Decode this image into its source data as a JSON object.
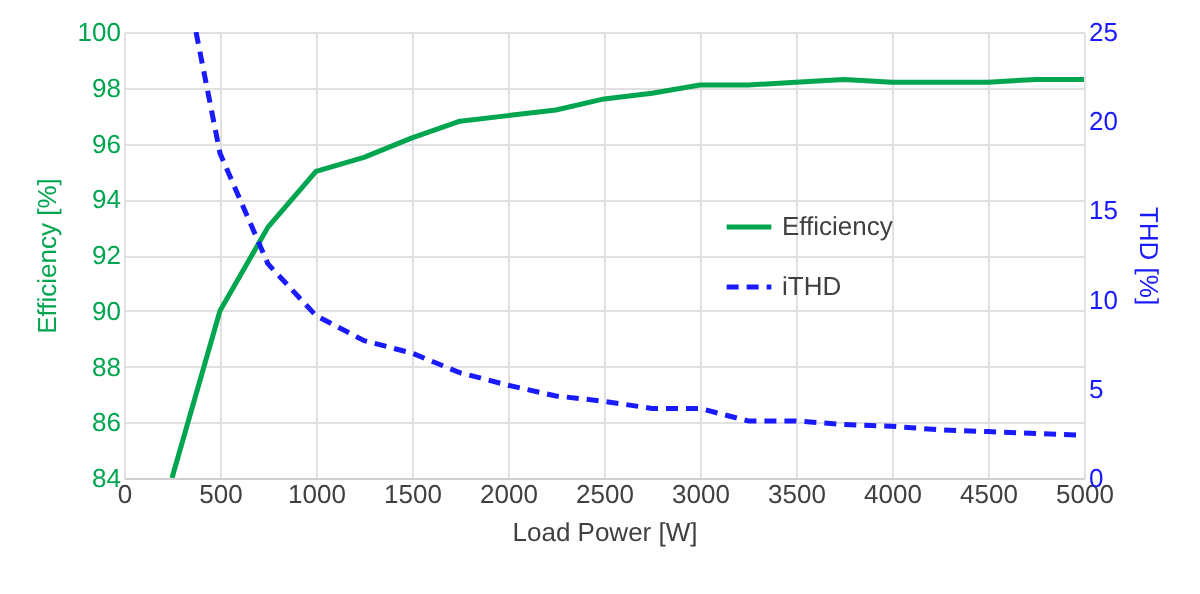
{
  "chart_data": {
    "type": "line",
    "xlabel": "Load Power [W]",
    "ylabel": "Efficiency [%]",
    "y2label": "THD [%]",
    "xlim": [
      0,
      5000
    ],
    "xticks": [
      0,
      500,
      1000,
      1500,
      2000,
      2500,
      3000,
      3500,
      4000,
      4500,
      5000
    ],
    "ylim": [
      84,
      100
    ],
    "yticks": [
      84,
      86,
      88,
      90,
      92,
      94,
      96,
      98,
      100
    ],
    "y2lim": [
      0,
      25
    ],
    "y2ticks": [
      0,
      5,
      10,
      15,
      20,
      25
    ],
    "grid": true,
    "legend": "right",
    "marker": "none",
    "series": [
      {
        "name": "Efficiency",
        "color": "#00a550",
        "line_style": "solid",
        "x": [
          250,
          500,
          750,
          1000,
          1250,
          1500,
          1750,
          2000,
          2250,
          2500,
          2750,
          3000,
          3250,
          3500,
          3750,
          4000,
          4250,
          4500,
          4750,
          5000
        ],
        "values": [
          84,
          90,
          93,
          95,
          95.5,
          96.2,
          96.8,
          97,
          97.2,
          97.6,
          97.8,
          98.1,
          98.1,
          98.2,
          98.3,
          98.2,
          98.2,
          98.2,
          98.3,
          98.3
        ]
      },
      {
        "name": "iTHD",
        "color": "#1a1aff",
        "line_style": "dashed",
        "axis": "y2",
        "x": [
          375,
          500,
          750,
          1000,
          1250,
          1500,
          1750,
          2000,
          2250,
          2500,
          2750,
          3000,
          3250,
          3500,
          3750,
          4000,
          4250,
          4500,
          4750,
          5000
        ],
        "values": [
          25,
          18.2,
          12,
          9.1,
          7.7,
          7,
          5.9,
          5.2,
          4.6,
          4.3,
          3.9,
          3.9,
          3.2,
          3.2,
          3,
          2.9,
          2.7,
          2.6,
          2.5,
          2.4
        ]
      }
    ]
  }
}
